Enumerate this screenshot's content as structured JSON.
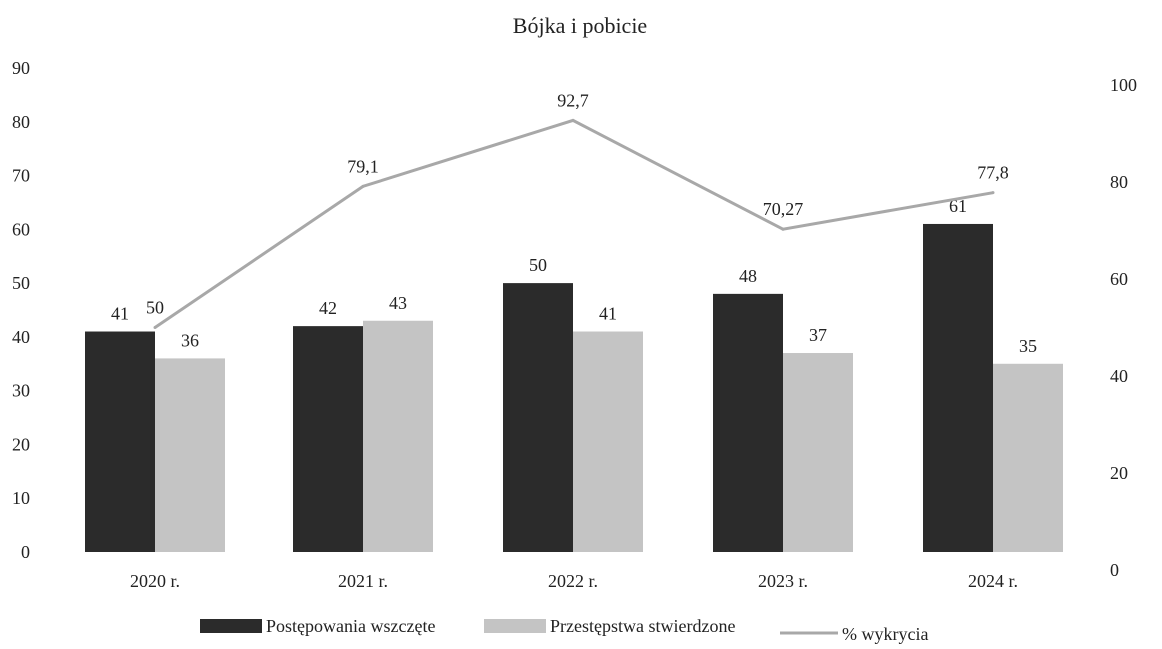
{
  "chart_data": {
    "type": "bar",
    "title": "Bójka i pobicie",
    "categories": [
      "2020 r.",
      "2021 r.",
      "2022 r.",
      "2023 r.",
      "2024 r."
    ],
    "series": [
      {
        "name": "Postępowania wszczęte",
        "kind": "bar",
        "axis": "left",
        "color": "#2b2b2b",
        "values": [
          41,
          42,
          50,
          48,
          61
        ]
      },
      {
        "name": "Przestępstwa stwierdzone",
        "kind": "bar",
        "axis": "left",
        "color": "#c4c4c4",
        "values": [
          36,
          43,
          41,
          37,
          35
        ]
      },
      {
        "name": "% wykrycia",
        "kind": "line",
        "axis": "right",
        "color": "#a8a8a8",
        "values": [
          50,
          79.1,
          92.7,
          70.27,
          77.8
        ],
        "labels": [
          "50",
          "79,1",
          "92,7",
          "70,27",
          "77,8"
        ]
      }
    ],
    "y_left": {
      "ylim": [
        0,
        90
      ],
      "ticks": [
        "0",
        "10",
        "20",
        "30",
        "40",
        "50",
        "60",
        "70",
        "80",
        "90"
      ]
    },
    "y_right": {
      "ylim": [
        0,
        100
      ],
      "ticks": [
        "0",
        "20",
        "40",
        "60",
        "80",
        "100"
      ]
    },
    "grid": false,
    "legend": "bottom"
  }
}
